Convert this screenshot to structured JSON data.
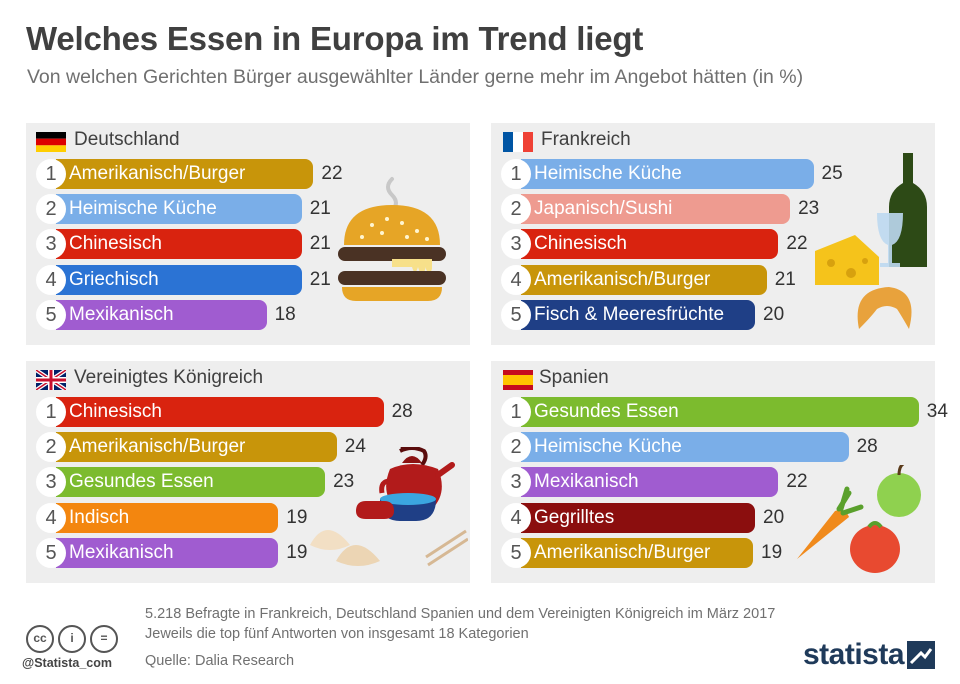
{
  "title": "Welches Essen in Europa im Trend liegt",
  "subtitle": "Von welchen Gerichten Bürger ausgewählter Länder gerne mehr im Angebot hätten (in %)",
  "chart_data": {
    "type": "bar",
    "orientation": "horizontal",
    "unit": "%",
    "panels": [
      {
        "country": "Deutschland",
        "items": [
          {
            "rank": "1",
            "label": "Amerikanisch/Burger",
            "value": 22,
            "color": "#c8950a"
          },
          {
            "rank": "2",
            "label": "Heimische Küche",
            "value": 21,
            "color": "#7aaee8"
          },
          {
            "rank": "3",
            "label": "Chinesisch",
            "value": 21,
            "color": "#d9230f"
          },
          {
            "rank": "4",
            "label": "Griechisch",
            "value": 21,
            "color": "#2b73d4"
          },
          {
            "rank": "5",
            "label": "Mexikanisch",
            "value": 18,
            "color": "#a05cd0"
          }
        ]
      },
      {
        "country": "Frankreich",
        "items": [
          {
            "rank": "1",
            "label": "Heimische Küche",
            "value": 25,
            "color": "#7aaee8"
          },
          {
            "rank": "2",
            "label": "Japanisch/Sushi",
            "value": 23,
            "color": "#ee9b90"
          },
          {
            "rank": "3",
            "label": "Chinesisch",
            "value": 22,
            "color": "#d9230f"
          },
          {
            "rank": "4",
            "label": "Amerikanisch/Burger",
            "value": 21,
            "color": "#c8950a"
          },
          {
            "rank": "5",
            "label": "Fisch & Meeresfrüchte",
            "value": 20,
            "color": "#1f3f86"
          }
        ]
      },
      {
        "country": "Vereinigtes Königreich",
        "items": [
          {
            "rank": "1",
            "label": "Chinesisch",
            "value": 28,
            "color": "#d9230f"
          },
          {
            "rank": "2",
            "label": "Amerikanisch/Burger",
            "value": 24,
            "color": "#c8950a"
          },
          {
            "rank": "3",
            "label": "Gesundes Essen",
            "value": 23,
            "color": "#7cbb2e"
          },
          {
            "rank": "4",
            "label": "Indisch",
            "value": 19,
            "color": "#f3860f"
          },
          {
            "rank": "5",
            "label": "Mexikanisch",
            "value": 19,
            "color": "#a05cd0"
          }
        ]
      },
      {
        "country": "Spanien",
        "items": [
          {
            "rank": "1",
            "label": "Gesundes Essen",
            "value": 34,
            "color": "#7cbb2e"
          },
          {
            "rank": "2",
            "label": "Heimische Küche",
            "value": 28,
            "color": "#7aaee8"
          },
          {
            "rank": "3",
            "label": "Mexikanisch",
            "value": 22,
            "color": "#a05cd0"
          },
          {
            "rank": "4",
            "label": "Gegrilltes",
            "value": 20,
            "color": "#8b0e0e"
          },
          {
            "rank": "5",
            "label": "Amerikanisch/Burger",
            "value": 19,
            "color": "#c8950a"
          }
        ]
      }
    ]
  },
  "footer": {
    "line1": "5.218 Befragte in Frankreich, Deutschland Spanien und dem Vereinigten Königreich im März 2017",
    "line2": "Jeweils die top fünf Antworten von insgesamt 18 Kategorien",
    "source": "Quelle: Dalia Research",
    "handle": "@Statista_com",
    "brand": "statista"
  }
}
